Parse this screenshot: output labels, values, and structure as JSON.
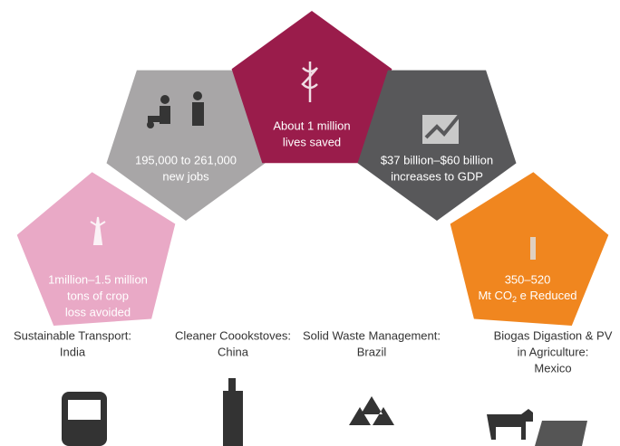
{
  "panels": [
    {
      "lines": [
        "1million–1.5 million",
        "tons of crop",
        "loss avoided"
      ]
    },
    {
      "lines": [
        "195,000 to 261,000",
        "new jobs"
      ]
    },
    {
      "lines": [
        "About 1 million",
        "lives saved"
      ]
    },
    {
      "lines": [
        "$37 billion–$60 billion",
        "increases to GDP"
      ]
    },
    {
      "lines": [
        "350–520"
      ],
      "unit_before": "Mt CO",
      "unit_sub": "2",
      "unit_after": " e Reduced"
    }
  ],
  "sectors": [
    {
      "lines": [
        "Sustainable Transport:",
        "India"
      ]
    },
    {
      "lines": [
        "Cleaner Coookstoves:",
        "China"
      ]
    },
    {
      "lines": [
        "Solid Waste Management:",
        "Brazil"
      ]
    },
    {
      "lines": [
        "Biogas Digastion & PV",
        "in Agriculture:",
        "Mexico"
      ]
    }
  ]
}
